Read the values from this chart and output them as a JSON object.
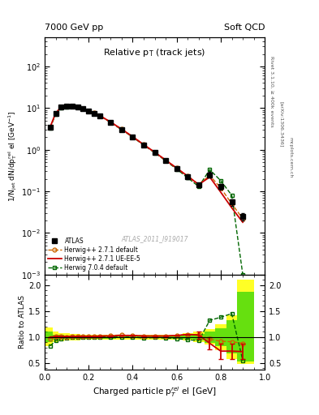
{
  "title_left": "7000 GeV pp",
  "title_right": "Soft QCD",
  "plot_title": "Relative p$_{T}$ (track jets)",
  "xlabel": "Charged particle p$_{T}^{rel}$ el [GeV]",
  "ylabel_main": "1/N$_{jet}$ dN/dp$_{T}^{rel}$ el [GeV$^{-1}$]",
  "ylabel_ratio": "Ratio to ATLAS",
  "right_label": "Rivet 3.1.10, ≥ 400k events",
  "arxiv_label": "[arXiv:1306.3436]",
  "mcplots_label": "mcplots.cern.ch",
  "watermark": "ATLAS_2011_I919017",
  "atlas_x": [
    0.025,
    0.05,
    0.075,
    0.1,
    0.125,
    0.15,
    0.175,
    0.2,
    0.225,
    0.25,
    0.3,
    0.35,
    0.4,
    0.45,
    0.5,
    0.55,
    0.6,
    0.65,
    0.7,
    0.75,
    0.8,
    0.85,
    0.9
  ],
  "atlas_y": [
    3.5,
    7.5,
    10.5,
    11.0,
    11.0,
    10.5,
    9.5,
    8.5,
    7.5,
    6.5,
    4.5,
    3.0,
    2.0,
    1.3,
    0.85,
    0.55,
    0.35,
    0.22,
    0.14,
    0.25,
    0.13,
    0.055,
    0.025
  ],
  "atlas_yerr": [
    0.3,
    0.5,
    0.6,
    0.6,
    0.6,
    0.6,
    0.5,
    0.5,
    0.5,
    0.4,
    0.3,
    0.2,
    0.15,
    0.1,
    0.07,
    0.05,
    0.03,
    0.02,
    0.015,
    0.04,
    0.02,
    0.01,
    0.005
  ],
  "hw271def_x": [
    0.025,
    0.05,
    0.075,
    0.1,
    0.125,
    0.15,
    0.175,
    0.2,
    0.225,
    0.25,
    0.3,
    0.35,
    0.4,
    0.45,
    0.5,
    0.55,
    0.6,
    0.65,
    0.7,
    0.75,
    0.8,
    0.85,
    0.9
  ],
  "hw271def_y": [
    3.4,
    7.4,
    10.4,
    10.9,
    11.0,
    10.6,
    9.6,
    8.6,
    7.6,
    6.6,
    4.6,
    3.1,
    2.05,
    1.32,
    0.87,
    0.56,
    0.36,
    0.23,
    0.145,
    0.24,
    0.12,
    0.05,
    0.022
  ],
  "hw271uee5_x": [
    0.025,
    0.05,
    0.075,
    0.1,
    0.125,
    0.15,
    0.175,
    0.2,
    0.225,
    0.25,
    0.3,
    0.35,
    0.4,
    0.45,
    0.5,
    0.55,
    0.6,
    0.65,
    0.7,
    0.75,
    0.8,
    0.85,
    0.9
  ],
  "hw271uee5_y": [
    3.5,
    7.6,
    10.6,
    11.1,
    11.1,
    10.6,
    9.6,
    8.6,
    7.6,
    6.6,
    4.6,
    3.1,
    2.05,
    1.32,
    0.87,
    0.56,
    0.36,
    0.23,
    0.145,
    0.22,
    0.095,
    0.04,
    0.018
  ],
  "hw704def_x": [
    0.025,
    0.05,
    0.075,
    0.1,
    0.125,
    0.15,
    0.175,
    0.2,
    0.225,
    0.25,
    0.3,
    0.35,
    0.4,
    0.45,
    0.5,
    0.55,
    0.6,
    0.65,
    0.7,
    0.75,
    0.8,
    0.85,
    0.9
  ],
  "hw704def_y": [
    3.3,
    7.2,
    10.2,
    10.8,
    11.0,
    10.5,
    9.5,
    8.5,
    7.5,
    6.5,
    4.5,
    3.0,
    2.0,
    1.28,
    0.84,
    0.54,
    0.34,
    0.21,
    0.13,
    0.33,
    0.18,
    0.08,
    0.001
  ],
  "ratio_hw271def_y": [
    0.97,
    1.02,
    1.01,
    1.0,
    1.01,
    1.02,
    1.02,
    1.02,
    1.02,
    1.02,
    1.03,
    1.04,
    1.03,
    1.02,
    1.02,
    1.02,
    1.03,
    1.05,
    1.04,
    0.96,
    0.92,
    0.91,
    0.88
  ],
  "ratio_hw271uee5_y": [
    1.0,
    1.01,
    1.01,
    1.01,
    1.01,
    1.01,
    1.01,
    1.01,
    1.01,
    1.02,
    1.02,
    1.03,
    1.03,
    1.02,
    1.02,
    1.02,
    1.03,
    1.05,
    1.04,
    0.88,
    0.73,
    0.73,
    0.72
  ],
  "ratio_hw271uee5_yerr": [
    0.0,
    0.0,
    0.0,
    0.0,
    0.0,
    0.0,
    0.0,
    0.0,
    0.0,
    0.0,
    0.0,
    0.0,
    0.0,
    0.0,
    0.0,
    0.0,
    0.0,
    0.0,
    0.07,
    0.12,
    0.15,
    0.15,
    0.15
  ],
  "ratio_hw704def_y": [
    0.83,
    0.93,
    0.97,
    0.98,
    1.0,
    1.0,
    1.0,
    1.0,
    1.0,
    1.0,
    1.0,
    1.0,
    1.0,
    0.98,
    0.99,
    0.98,
    0.97,
    0.95,
    0.93,
    1.32,
    1.38,
    1.45,
    0.55
  ],
  "band_x_lo": [
    0.0,
    0.0375,
    0.0625,
    0.0875,
    0.1125,
    0.1375,
    0.1625,
    0.1875,
    0.2125,
    0.2375,
    0.275,
    0.325,
    0.375,
    0.425,
    0.475,
    0.525,
    0.575,
    0.625,
    0.675,
    0.725,
    0.775,
    0.825,
    0.875
  ],
  "band_x_hi": [
    0.0375,
    0.0625,
    0.0875,
    0.1125,
    0.1375,
    0.1625,
    0.1875,
    0.2125,
    0.2375,
    0.275,
    0.325,
    0.375,
    0.425,
    0.475,
    0.525,
    0.575,
    0.625,
    0.675,
    0.725,
    0.775,
    0.825,
    0.875,
    0.95
  ],
  "yellow_band_y_lo": [
    0.82,
    0.9,
    0.92,
    0.93,
    0.94,
    0.94,
    0.95,
    0.95,
    0.95,
    0.95,
    0.95,
    0.95,
    0.95,
    0.95,
    0.95,
    0.95,
    0.95,
    0.93,
    0.9,
    0.85,
    0.75,
    0.58,
    0.48
  ],
  "yellow_band_y_hi": [
    1.18,
    1.1,
    1.08,
    1.07,
    1.06,
    1.06,
    1.05,
    1.05,
    1.05,
    1.05,
    1.05,
    1.05,
    1.05,
    1.05,
    1.05,
    1.05,
    1.05,
    1.07,
    1.1,
    1.15,
    1.25,
    1.42,
    2.1
  ],
  "green_band_y_lo": [
    0.9,
    0.95,
    0.96,
    0.97,
    0.97,
    0.97,
    0.97,
    0.97,
    0.97,
    0.97,
    0.97,
    0.98,
    0.98,
    0.98,
    0.98,
    0.98,
    0.97,
    0.96,
    0.94,
    0.89,
    0.83,
    0.68,
    0.53
  ],
  "green_band_y_hi": [
    1.1,
    1.05,
    1.04,
    1.03,
    1.03,
    1.03,
    1.03,
    1.03,
    1.03,
    1.03,
    1.03,
    1.02,
    1.02,
    1.02,
    1.02,
    1.02,
    1.03,
    1.04,
    1.06,
    1.11,
    1.17,
    1.32,
    1.87
  ],
  "color_atlas": "#000000",
  "color_hw271def": "#cc6600",
  "color_hw271uee5": "#cc0000",
  "color_hw704def": "#006600",
  "color_yellow": "#ffff00",
  "color_green": "#00cc00",
  "xlim": [
    0.0,
    1.0
  ],
  "ylim_main": [
    0.001,
    500
  ],
  "ylim_ratio": [
    0.38,
    2.2
  ]
}
